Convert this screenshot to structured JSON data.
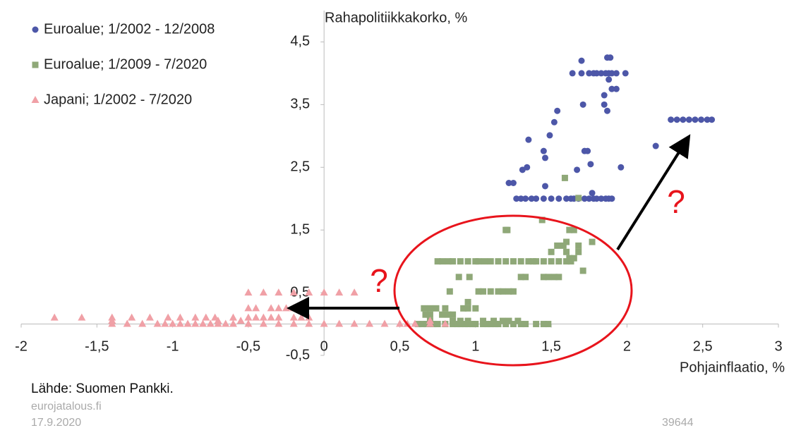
{
  "chart_data": {
    "type": "scatter",
    "x_label": "Pohjainflaatio, %",
    "y_label": "Rahapolitiikkakorko, %",
    "xlim": [
      -2,
      3
    ],
    "ylim": [
      -0.5,
      5
    ],
    "xticks": [
      -2,
      {
        "value": -1.5,
        "label": "-1,5"
      },
      -1,
      {
        "value": -0.5,
        "label": "-0,5"
      },
      0,
      {
        "value": 0.5,
        "label": "0,5"
      },
      1,
      {
        "value": 1.5,
        "label": "1,5"
      },
      2,
      {
        "value": 2.5,
        "label": "2,5"
      },
      3
    ],
    "yticks": [
      {
        "value": -0.5,
        "label": "-0,5"
      },
      {
        "value": 0.5,
        "label": "0,5"
      },
      {
        "value": 1.5,
        "label": "1,5"
      },
      {
        "value": 2.5,
        "label": "2,5"
      },
      {
        "value": 3.5,
        "label": "3,5"
      },
      {
        "value": 4.5,
        "label": "4,5"
      }
    ],
    "grid": false,
    "legend": "top-left",
    "series": [
      {
        "name": "Euroalue; 1/2002 - 12/2008",
        "color": "#4d57a8",
        "marker": "circle",
        "x": [
          1.27,
          1.3,
          1.33,
          1.37,
          1.4,
          1.45,
          1.5,
          1.55,
          1.6,
          1.63,
          1.65,
          1.68,
          1.72,
          1.75,
          1.78,
          1.8,
          1.83,
          1.86,
          1.88,
          1.9,
          1.22,
          1.25,
          1.46,
          1.31,
          1.67,
          1.34,
          1.96,
          1.45,
          1.72,
          1.74,
          1.46,
          1.35,
          1.49,
          1.52,
          1.54,
          1.87,
          1.71,
          1.85,
          1.7,
          1.64,
          1.7,
          1.75,
          1.78,
          1.8,
          1.83,
          1.86,
          1.88,
          1.9,
          1.93,
          1.99,
          1.87,
          1.89,
          1.88,
          1.9,
          1.93,
          1.85,
          1.76,
          1.77,
          2.19,
          2.29,
          2.33,
          2.37,
          2.41,
          2.45,
          2.49,
          2.53,
          2.56
        ],
        "values": [
          2,
          2,
          2,
          2,
          2,
          2,
          2,
          2,
          2,
          2,
          2,
          2,
          2,
          2,
          2,
          2,
          2,
          2,
          2,
          2,
          2.25,
          2.25,
          2.2,
          2.46,
          2.46,
          2.5,
          2.5,
          2.76,
          2.76,
          2.76,
          2.65,
          2.94,
          3.01,
          3.22,
          3.4,
          3.4,
          3.5,
          3.5,
          4.2,
          4,
          4,
          4,
          4,
          4,
          4,
          4,
          4,
          4,
          4,
          4,
          4.25,
          4.25,
          3.9,
          3.75,
          3.75,
          3.65,
          2.55,
          2.09,
          2.84,
          3.26,
          3.26,
          3.26,
          3.26,
          3.26,
          3.26,
          3.26,
          3.26
        ]
      },
      {
        "name": "Euroalue; 1/2009 - 7/2020",
        "color": "#8fa878",
        "marker": "square",
        "x": [
          0.62,
          0.65,
          0.68,
          0.72,
          0.75,
          0.8,
          0.85,
          0.88,
          0.9,
          0.93,
          0.95,
          0.98,
          1.0,
          1.05,
          1.08,
          1.1,
          1.13,
          1.15,
          1.2,
          1.25,
          1.3,
          1.33,
          1.4,
          1.45,
          1.48,
          0.7,
          0.85,
          0.9,
          0.95,
          1.05,
          1.12,
          1.18,
          1.22,
          1.28,
          0.67,
          0.7,
          0.78,
          0.82,
          0.85,
          0.66,
          0.7,
          0.74,
          0.8,
          0.92,
          0.95,
          1.0,
          0.95,
          0.83,
          1.02,
          1.05,
          1.1,
          1.15,
          1.18,
          1.22,
          1.25,
          0.89,
          0.96,
          1.3,
          1.33,
          1.45,
          1.48,
          1.52,
          1.55,
          1.71,
          0.75,
          0.78,
          0.82,
          0.85,
          0.9,
          0.95,
          1.0,
          1.02,
          1.06,
          1.1,
          1.15,
          1.2,
          1.25,
          1.3,
          1.35,
          1.38,
          1.4,
          1.45,
          1.5,
          1.55,
          1.6,
          1.63,
          1.62,
          1.65,
          1.5,
          1.6,
          1.68,
          1.54,
          1.58,
          1.68,
          1.6,
          1.77,
          1.2,
          1.21,
          1.62,
          1.65,
          1.44,
          1.68,
          1.59
        ],
        "values": [
          0,
          0,
          0,
          0,
          0,
          0,
          0,
          0,
          0,
          0,
          0,
          0,
          0,
          0,
          0,
          0,
          0,
          0,
          0,
          0,
          0,
          0,
          0,
          0,
          0,
          0.05,
          0.05,
          0.05,
          0.05,
          0.05,
          0.05,
          0.05,
          0.05,
          0.05,
          0.15,
          0.15,
          0.15,
          0.15,
          0.15,
          0.25,
          0.25,
          0.25,
          0.25,
          0.25,
          0.25,
          0.25,
          0.35,
          0.52,
          0.52,
          0.52,
          0.52,
          0.52,
          0.52,
          0.52,
          0.52,
          0.75,
          0.75,
          0.75,
          0.75,
          0.75,
          0.75,
          0.75,
          0.75,
          0.85,
          1,
          1,
          1,
          1,
          1,
          1,
          1,
          1,
          1,
          1,
          1,
          1,
          1,
          1,
          1,
          1,
          1,
          1,
          1,
          1,
          1,
          1,
          1.05,
          1.05,
          1.15,
          1.15,
          1.15,
          1.25,
          1.25,
          1.25,
          1.31,
          1.31,
          1.5,
          1.5,
          1.5,
          1.5,
          1.66,
          2.01,
          2.33
        ]
      },
      {
        "name": "Japani; 1/2002 - 7/2020",
        "color": "#f0a0a6",
        "marker": "triangle",
        "x": [
          -1.4,
          -1.3,
          -1.2,
          -1.1,
          -1.05,
          -1.0,
          -0.95,
          -0.9,
          -0.85,
          -0.8,
          -0.75,
          -0.7,
          -0.65,
          -0.6,
          -0.5,
          -0.4,
          -0.3,
          -0.2,
          -0.1,
          0,
          0.1,
          0.2,
          0.3,
          0.4,
          0.5,
          0.55,
          0.6,
          0.7,
          0.8,
          -1.78,
          -1.6,
          -1.4,
          -1.27,
          -1.15,
          -1.03,
          -0.95,
          -0.85,
          -0.78,
          -0.72,
          -0.6,
          -0.5,
          -0.45,
          -0.4,
          -0.35,
          -0.3,
          -0.2,
          -0.15,
          -0.1,
          -1.4,
          -0.7,
          -0.55,
          0.7,
          -0.5,
          -0.45,
          -0.35,
          -0.3,
          -0.25,
          -0.2,
          -0.5,
          -0.4,
          -0.3,
          -0.2,
          -0.1,
          0,
          0.1,
          0.2
        ],
        "values": [
          0,
          0,
          0,
          0,
          0,
          0,
          0,
          0,
          0,
          0,
          0,
          0,
          0,
          0,
          0,
          0,
          0,
          0,
          0,
          0,
          0,
          0,
          0,
          0,
          0,
          0,
          0,
          0,
          0,
          0.1,
          0.1,
          0.1,
          0.1,
          0.1,
          0.1,
          0.1,
          0.1,
          0.1,
          0.1,
          0.1,
          0.1,
          0.1,
          0.1,
          0.1,
          0.1,
          0.1,
          0.1,
          0.1,
          0.05,
          0.05,
          0.05,
          0.05,
          0.25,
          0.25,
          0.25,
          0.25,
          0.25,
          0.25,
          0.5,
          0.5,
          0.5,
          0.5,
          0.5,
          0.5,
          0.5,
          0.5
        ]
      }
    ],
    "annotations": [
      "?",
      "?"
    ],
    "footer": [
      "Lähde: Suomen Pankki.",
      "eurojatalous.fi",
      "17.9.2020",
      "39644"
    ]
  }
}
